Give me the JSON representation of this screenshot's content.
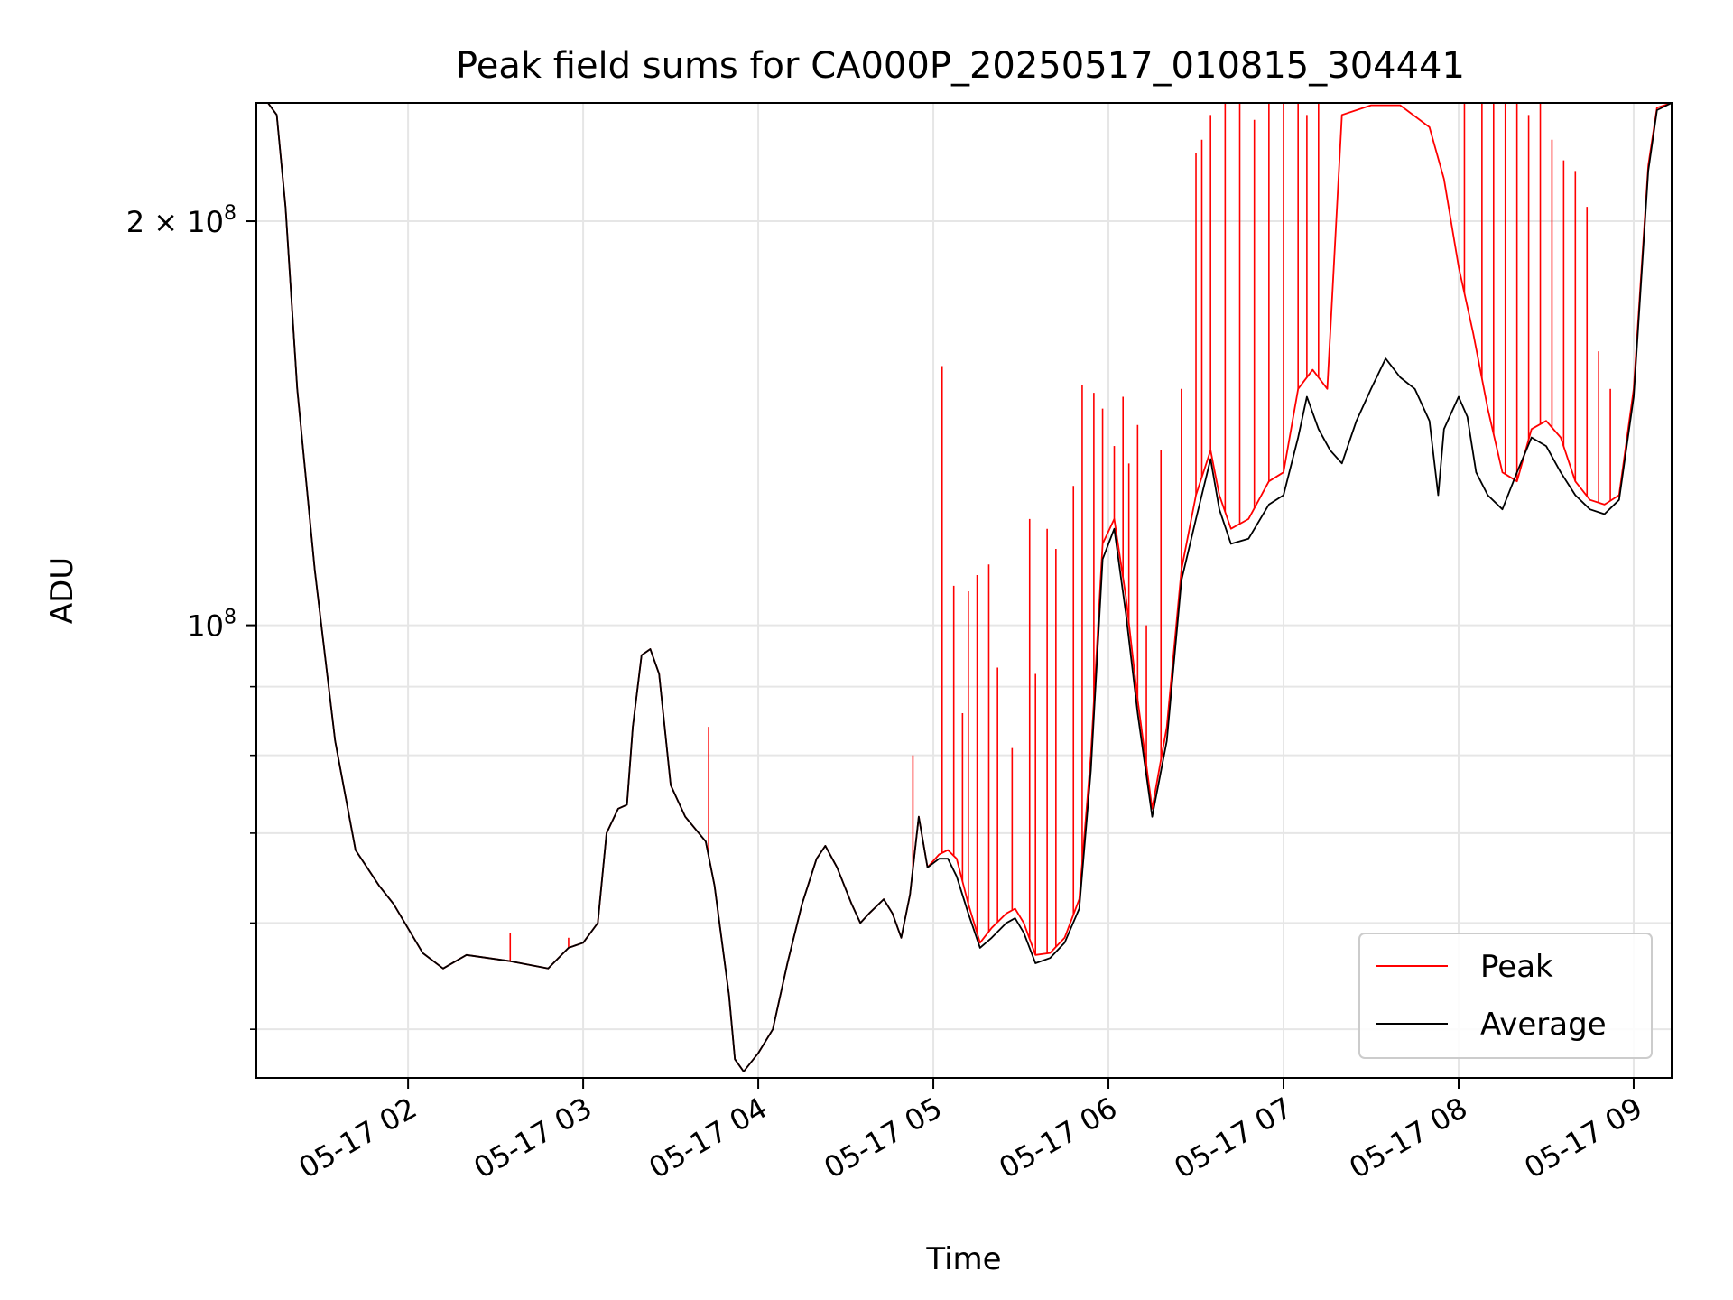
{
  "chart_data": {
    "type": "line",
    "title": "Peak field sums for CA000P_20250517_010815_304441",
    "xlabel": "Time",
    "ylabel": "ADU",
    "y_scale": "log",
    "ylim": [
      46000000,
      245000000
    ],
    "xlim": [
      "2025-05-17 01:08",
      "2025-05-17 09:13"
    ],
    "grid": true,
    "legend_position": "lower right",
    "x_ticks": [
      {
        "value": "2025-05-17 02:00",
        "label": "05-17 02"
      },
      {
        "value": "2025-05-17 03:00",
        "label": "05-17 03"
      },
      {
        "value": "2025-05-17 04:00",
        "label": "05-17 04"
      },
      {
        "value": "2025-05-17 05:00",
        "label": "05-17 05"
      },
      {
        "value": "2025-05-17 06:00",
        "label": "05-17 06"
      },
      {
        "value": "2025-05-17 07:00",
        "label": "05-17 07"
      },
      {
        "value": "2025-05-17 08:00",
        "label": "05-17 08"
      },
      {
        "value": "2025-05-17 09:00",
        "label": "05-17 09"
      }
    ],
    "y_major_ticks": [
      {
        "value": 100000000,
        "label_base": "10",
        "label_exp": "8",
        "label_coef": ""
      },
      {
        "value": 200000000,
        "label_base": "10",
        "label_exp": "8",
        "label_coef": "2 × "
      }
    ],
    "y_minor_ticks": [
      50000000,
      60000000,
      70000000,
      80000000,
      90000000
    ],
    "series": [
      {
        "name": "Peak",
        "color": "#ff0000",
        "baseline": [
          [
            "01:08",
            245000000
          ],
          [
            "01:12",
            245000000
          ],
          [
            "01:15",
            240000000
          ],
          [
            "01:18",
            205000000
          ],
          [
            "01:22",
            150000000
          ],
          [
            "01:28",
            110000000
          ],
          [
            "01:35",
            82000000
          ],
          [
            "01:42",
            68000000
          ],
          [
            "01:50",
            64000000
          ],
          [
            "01:55",
            62000000
          ],
          [
            "02:05",
            57000000
          ],
          [
            "02:12",
            55500000
          ],
          [
            "02:20",
            56800000
          ],
          [
            "02:35",
            56200000
          ],
          [
            "02:48",
            55500000
          ],
          [
            "02:55",
            57500000
          ],
          [
            "03:00",
            58000000
          ],
          [
            "03:05",
            60000000
          ],
          [
            "03:08",
            70000000
          ],
          [
            "03:12",
            73000000
          ],
          [
            "03:15",
            73500000
          ],
          [
            "03:17",
            84000000
          ],
          [
            "03:20",
            95000000
          ],
          [
            "03:23",
            96000000
          ],
          [
            "03:26",
            92000000
          ],
          [
            "03:30",
            76000000
          ],
          [
            "03:35",
            72000000
          ],
          [
            "03:42",
            69000000
          ],
          [
            "03:45",
            64000000
          ],
          [
            "03:50",
            53000000
          ],
          [
            "03:52",
            47500000
          ],
          [
            "03:55",
            46500000
          ],
          [
            "04:00",
            48000000
          ],
          [
            "04:05",
            50000000
          ],
          [
            "04:10",
            56000000
          ],
          [
            "04:15",
            62000000
          ],
          [
            "04:20",
            67000000
          ],
          [
            "04:23",
            68500000
          ],
          [
            "04:27",
            66000000
          ],
          [
            "04:32",
            62000000
          ],
          [
            "04:35",
            60000000
          ],
          [
            "04:38",
            61000000
          ],
          [
            "04:43",
            62500000
          ],
          [
            "04:46",
            61000000
          ],
          [
            "04:49",
            58500000
          ],
          [
            "04:52",
            63000000
          ],
          [
            "04:55",
            72000000
          ],
          [
            "04:58",
            66000000
          ],
          [
            "05:02",
            67500000
          ],
          [
            "05:05",
            68000000
          ],
          [
            "05:08",
            67000000
          ],
          [
            "05:12",
            62000000
          ],
          [
            "05:16",
            58000000
          ],
          [
            "05:20",
            59500000
          ],
          [
            "05:25",
            61000000
          ],
          [
            "05:28",
            61500000
          ],
          [
            "05:31",
            60000000
          ],
          [
            "05:35",
            56800000
          ],
          [
            "05:40",
            57000000
          ],
          [
            "05:45",
            58500000
          ],
          [
            "05:50",
            62500000
          ],
          [
            "05:54",
            80000000
          ],
          [
            "05:58",
            115000000
          ],
          [
            "06:02",
            120000000
          ],
          [
            "06:06",
            105000000
          ],
          [
            "06:10",
            88000000
          ],
          [
            "06:15",
            73000000
          ],
          [
            "06:20",
            84000000
          ],
          [
            "06:25",
            110000000
          ],
          [
            "06:30",
            125000000
          ],
          [
            "06:35",
            135000000
          ],
          [
            "06:38",
            125000000
          ],
          [
            "06:42",
            118000000
          ],
          [
            "06:48",
            120000000
          ],
          [
            "06:55",
            128000000
          ],
          [
            "07:00",
            130000000
          ],
          [
            "07:05",
            150000000
          ],
          [
            "07:10",
            155000000
          ],
          [
            "07:15",
            150000000
          ],
          [
            "07:20",
            240000000
          ],
          [
            "07:30",
            244000000
          ],
          [
            "07:40",
            244000000
          ],
          [
            "07:50",
            235000000
          ],
          [
            "07:55",
            215000000
          ],
          [
            "08:00",
            185000000
          ],
          [
            "08:05",
            165000000
          ],
          [
            "08:10",
            145000000
          ],
          [
            "08:15",
            130000000
          ],
          [
            "08:20",
            128000000
          ],
          [
            "08:25",
            140000000
          ],
          [
            "08:30",
            142000000
          ],
          [
            "08:35",
            138000000
          ],
          [
            "08:40",
            128000000
          ],
          [
            "08:45",
            124000000
          ],
          [
            "08:50",
            123000000
          ],
          [
            "08:55",
            125000000
          ],
          [
            "09:00",
            150000000
          ],
          [
            "09:05",
            220000000
          ],
          [
            "09:08",
            243000000
          ],
          [
            "09:13",
            245000000
          ]
        ],
        "spikes": [
          [
            "02:35",
            59000000
          ],
          [
            "02:55",
            58500000
          ],
          [
            "03:43",
            84000000
          ],
          [
            "04:53",
            80000000
          ],
          [
            "05:03",
            156000000
          ],
          [
            "05:07",
            107000000
          ],
          [
            "05:10",
            86000000
          ],
          [
            "05:12",
            106000000
          ],
          [
            "05:15",
            109000000
          ],
          [
            "05:19",
            111000000
          ],
          [
            "05:22",
            93000000
          ],
          [
            "05:27",
            81000000
          ],
          [
            "05:33",
            120000000
          ],
          [
            "05:35",
            92000000
          ],
          [
            "05:39",
            118000000
          ],
          [
            "05:42",
            114000000
          ],
          [
            "05:48",
            127000000
          ],
          [
            "05:51",
            151000000
          ],
          [
            "05:55",
            149000000
          ],
          [
            "05:58",
            145000000
          ],
          [
            "06:02",
            136000000
          ],
          [
            "06:05",
            148000000
          ],
          [
            "06:07",
            132000000
          ],
          [
            "06:10",
            141000000
          ],
          [
            "06:13",
            100000000
          ],
          [
            "06:18",
            135000000
          ],
          [
            "06:25",
            150000000
          ],
          [
            "06:30",
            225000000
          ],
          [
            "06:32",
            230000000
          ],
          [
            "06:35",
            240000000
          ],
          [
            "06:40",
            245000000
          ],
          [
            "06:45",
            245000000
          ],
          [
            "06:50",
            238000000
          ],
          [
            "06:55",
            245000000
          ],
          [
            "07:00",
            245000000
          ],
          [
            "07:05",
            245000000
          ],
          [
            "07:08",
            240000000
          ],
          [
            "07:12",
            245000000
          ],
          [
            "08:02",
            245000000
          ],
          [
            "08:08",
            245000000
          ],
          [
            "08:12",
            245000000
          ],
          [
            "08:16",
            245000000
          ],
          [
            "08:20",
            245000000
          ],
          [
            "08:24",
            240000000
          ],
          [
            "08:28",
            245000000
          ],
          [
            "08:32",
            230000000
          ],
          [
            "08:36",
            222000000
          ],
          [
            "08:40",
            218000000
          ],
          [
            "08:44",
            205000000
          ],
          [
            "08:48",
            160000000
          ],
          [
            "08:52",
            150000000
          ]
        ]
      },
      {
        "name": "Average",
        "color": "#000000",
        "baseline": [
          [
            "01:08",
            245000000
          ],
          [
            "01:12",
            245000000
          ],
          [
            "01:15",
            240000000
          ],
          [
            "01:18",
            205000000
          ],
          [
            "01:22",
            150000000
          ],
          [
            "01:28",
            110000000
          ],
          [
            "01:35",
            82000000
          ],
          [
            "01:42",
            68000000
          ],
          [
            "01:50",
            64000000
          ],
          [
            "01:55",
            62000000
          ],
          [
            "02:05",
            57000000
          ],
          [
            "02:12",
            55500000
          ],
          [
            "02:20",
            56800000
          ],
          [
            "02:35",
            56200000
          ],
          [
            "02:48",
            55500000
          ],
          [
            "02:55",
            57500000
          ],
          [
            "03:00",
            58000000
          ],
          [
            "03:05",
            60000000
          ],
          [
            "03:08",
            70000000
          ],
          [
            "03:12",
            73000000
          ],
          [
            "03:15",
            73500000
          ],
          [
            "03:17",
            84000000
          ],
          [
            "03:20",
            95000000
          ],
          [
            "03:23",
            96000000
          ],
          [
            "03:26",
            92000000
          ],
          [
            "03:30",
            76000000
          ],
          [
            "03:35",
            72000000
          ],
          [
            "03:42",
            69000000
          ],
          [
            "03:45",
            64000000
          ],
          [
            "03:50",
            53000000
          ],
          [
            "03:52",
            47500000
          ],
          [
            "03:55",
            46500000
          ],
          [
            "04:00",
            48000000
          ],
          [
            "04:05",
            50000000
          ],
          [
            "04:10",
            56000000
          ],
          [
            "04:15",
            62000000
          ],
          [
            "04:20",
            67000000
          ],
          [
            "04:23",
            68500000
          ],
          [
            "04:27",
            66000000
          ],
          [
            "04:32",
            62000000
          ],
          [
            "04:35",
            60000000
          ],
          [
            "04:38",
            61000000
          ],
          [
            "04:43",
            62500000
          ],
          [
            "04:46",
            61000000
          ],
          [
            "04:49",
            58500000
          ],
          [
            "04:52",
            63000000
          ],
          [
            "04:55",
            72000000
          ],
          [
            "04:58",
            66000000
          ],
          [
            "05:02",
            67000000
          ],
          [
            "05:05",
            67000000
          ],
          [
            "05:08",
            65000000
          ],
          [
            "05:12",
            61000000
          ],
          [
            "05:16",
            57500000
          ],
          [
            "05:20",
            58500000
          ],
          [
            "05:25",
            60000000
          ],
          [
            "05:28",
            60500000
          ],
          [
            "05:31",
            59000000
          ],
          [
            "05:35",
            56000000
          ],
          [
            "05:40",
            56500000
          ],
          [
            "05:45",
            58000000
          ],
          [
            "05:50",
            61500000
          ],
          [
            "05:54",
            78000000
          ],
          [
            "05:58",
            112000000
          ],
          [
            "06:02",
            118000000
          ],
          [
            "06:06",
            102000000
          ],
          [
            "06:10",
            86000000
          ],
          [
            "06:15",
            72000000
          ],
          [
            "06:20",
            82000000
          ],
          [
            "06:25",
            108000000
          ],
          [
            "06:30",
            120000000
          ],
          [
            "06:35",
            133000000
          ],
          [
            "06:38",
            122000000
          ],
          [
            "06:42",
            115000000
          ],
          [
            "06:48",
            116000000
          ],
          [
            "06:55",
            123000000
          ],
          [
            "07:00",
            125000000
          ],
          [
            "07:05",
            138000000
          ],
          [
            "07:08",
            148000000
          ],
          [
            "07:12",
            140000000
          ],
          [
            "07:16",
            135000000
          ],
          [
            "07:20",
            132000000
          ],
          [
            "07:25",
            142000000
          ],
          [
            "07:30",
            150000000
          ],
          [
            "07:35",
            158000000
          ],
          [
            "07:40",
            153000000
          ],
          [
            "07:45",
            150000000
          ],
          [
            "07:50",
            142000000
          ],
          [
            "07:53",
            125000000
          ],
          [
            "07:55",
            140000000
          ],
          [
            "08:00",
            148000000
          ],
          [
            "08:03",
            143000000
          ],
          [
            "08:06",
            130000000
          ],
          [
            "08:10",
            125000000
          ],
          [
            "08:15",
            122000000
          ],
          [
            "08:20",
            130000000
          ],
          [
            "08:25",
            138000000
          ],
          [
            "08:30",
            136000000
          ],
          [
            "08:35",
            130000000
          ],
          [
            "08:40",
            125000000
          ],
          [
            "08:45",
            122000000
          ],
          [
            "08:50",
            121000000
          ],
          [
            "08:55",
            124000000
          ],
          [
            "09:00",
            148000000
          ],
          [
            "09:05",
            218000000
          ],
          [
            "09:08",
            242000000
          ],
          [
            "09:13",
            245000000
          ]
        ]
      }
    ]
  }
}
